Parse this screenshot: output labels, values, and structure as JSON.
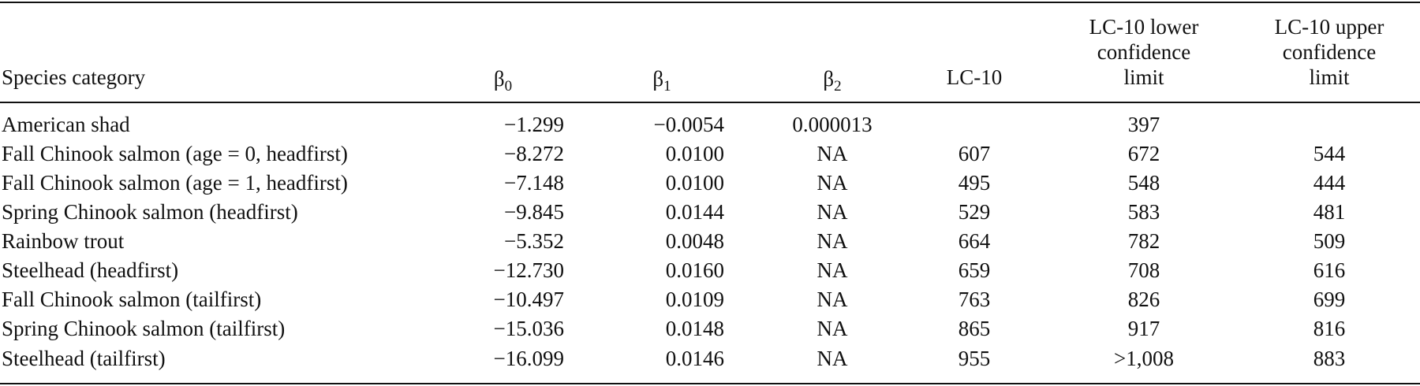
{
  "table": {
    "headers": {
      "species": "Species category",
      "beta0_symbol": "β",
      "beta0_sub": "0",
      "beta1_symbol": "β",
      "beta1_sub": "1",
      "beta2_symbol": "β",
      "beta2_sub": "2",
      "lc10": "LC-10",
      "lc10_lower": [
        "LC-10 lower",
        "confidence",
        "limit"
      ],
      "lc10_upper": [
        "LC-10 upper",
        "confidence",
        "limit"
      ]
    },
    "rows": [
      {
        "species": "American shad",
        "b0": "−1.299",
        "b1": "−0.0054",
        "b2": "0.000013",
        "lc10": "",
        "lower": "397",
        "upper": ""
      },
      {
        "species": "Fall Chinook salmon (age = 0, headfirst)",
        "b0": "−8.272",
        "b1": "0.0100",
        "b2": "NA",
        "lc10": "607",
        "lower": "672",
        "upper": "544"
      },
      {
        "species": "Fall Chinook salmon (age = 1, headfirst)",
        "b0": "−7.148",
        "b1": "0.0100",
        "b2": "NA",
        "lc10": "495",
        "lower": "548",
        "upper": "444"
      },
      {
        "species": "Spring Chinook salmon (headfirst)",
        "b0": "−9.845",
        "b1": "0.0144",
        "b2": "NA",
        "lc10": "529",
        "lower": "583",
        "upper": "481"
      },
      {
        "species": "Rainbow trout",
        "b0": "−5.352",
        "b1": "0.0048",
        "b2": "NA",
        "lc10": "664",
        "lower": "782",
        "upper": "509"
      },
      {
        "species": "Steelhead (headfirst)",
        "b0": "−12.730",
        "b1": "0.0160",
        "b2": "NA",
        "lc10": "659",
        "lower": "708",
        "upper": "616"
      },
      {
        "species": "Fall Chinook salmon (tailfirst)",
        "b0": "−10.497",
        "b1": "0.0109",
        "b2": "NA",
        "lc10": "763",
        "lower": "826",
        "upper": "699"
      },
      {
        "species": "Spring Chinook salmon (tailfirst)",
        "b0": "−15.036",
        "b1": "0.0148",
        "b2": "NA",
        "lc10": "865",
        "lower": "917",
        "upper": "816"
      },
      {
        "species": "Steelhead (tailfirst)",
        "b0": "−16.099",
        "b1": "0.0146",
        "b2": "NA",
        "lc10": "955",
        "lower": ">1,008",
        "upper": "883"
      }
    ]
  }
}
